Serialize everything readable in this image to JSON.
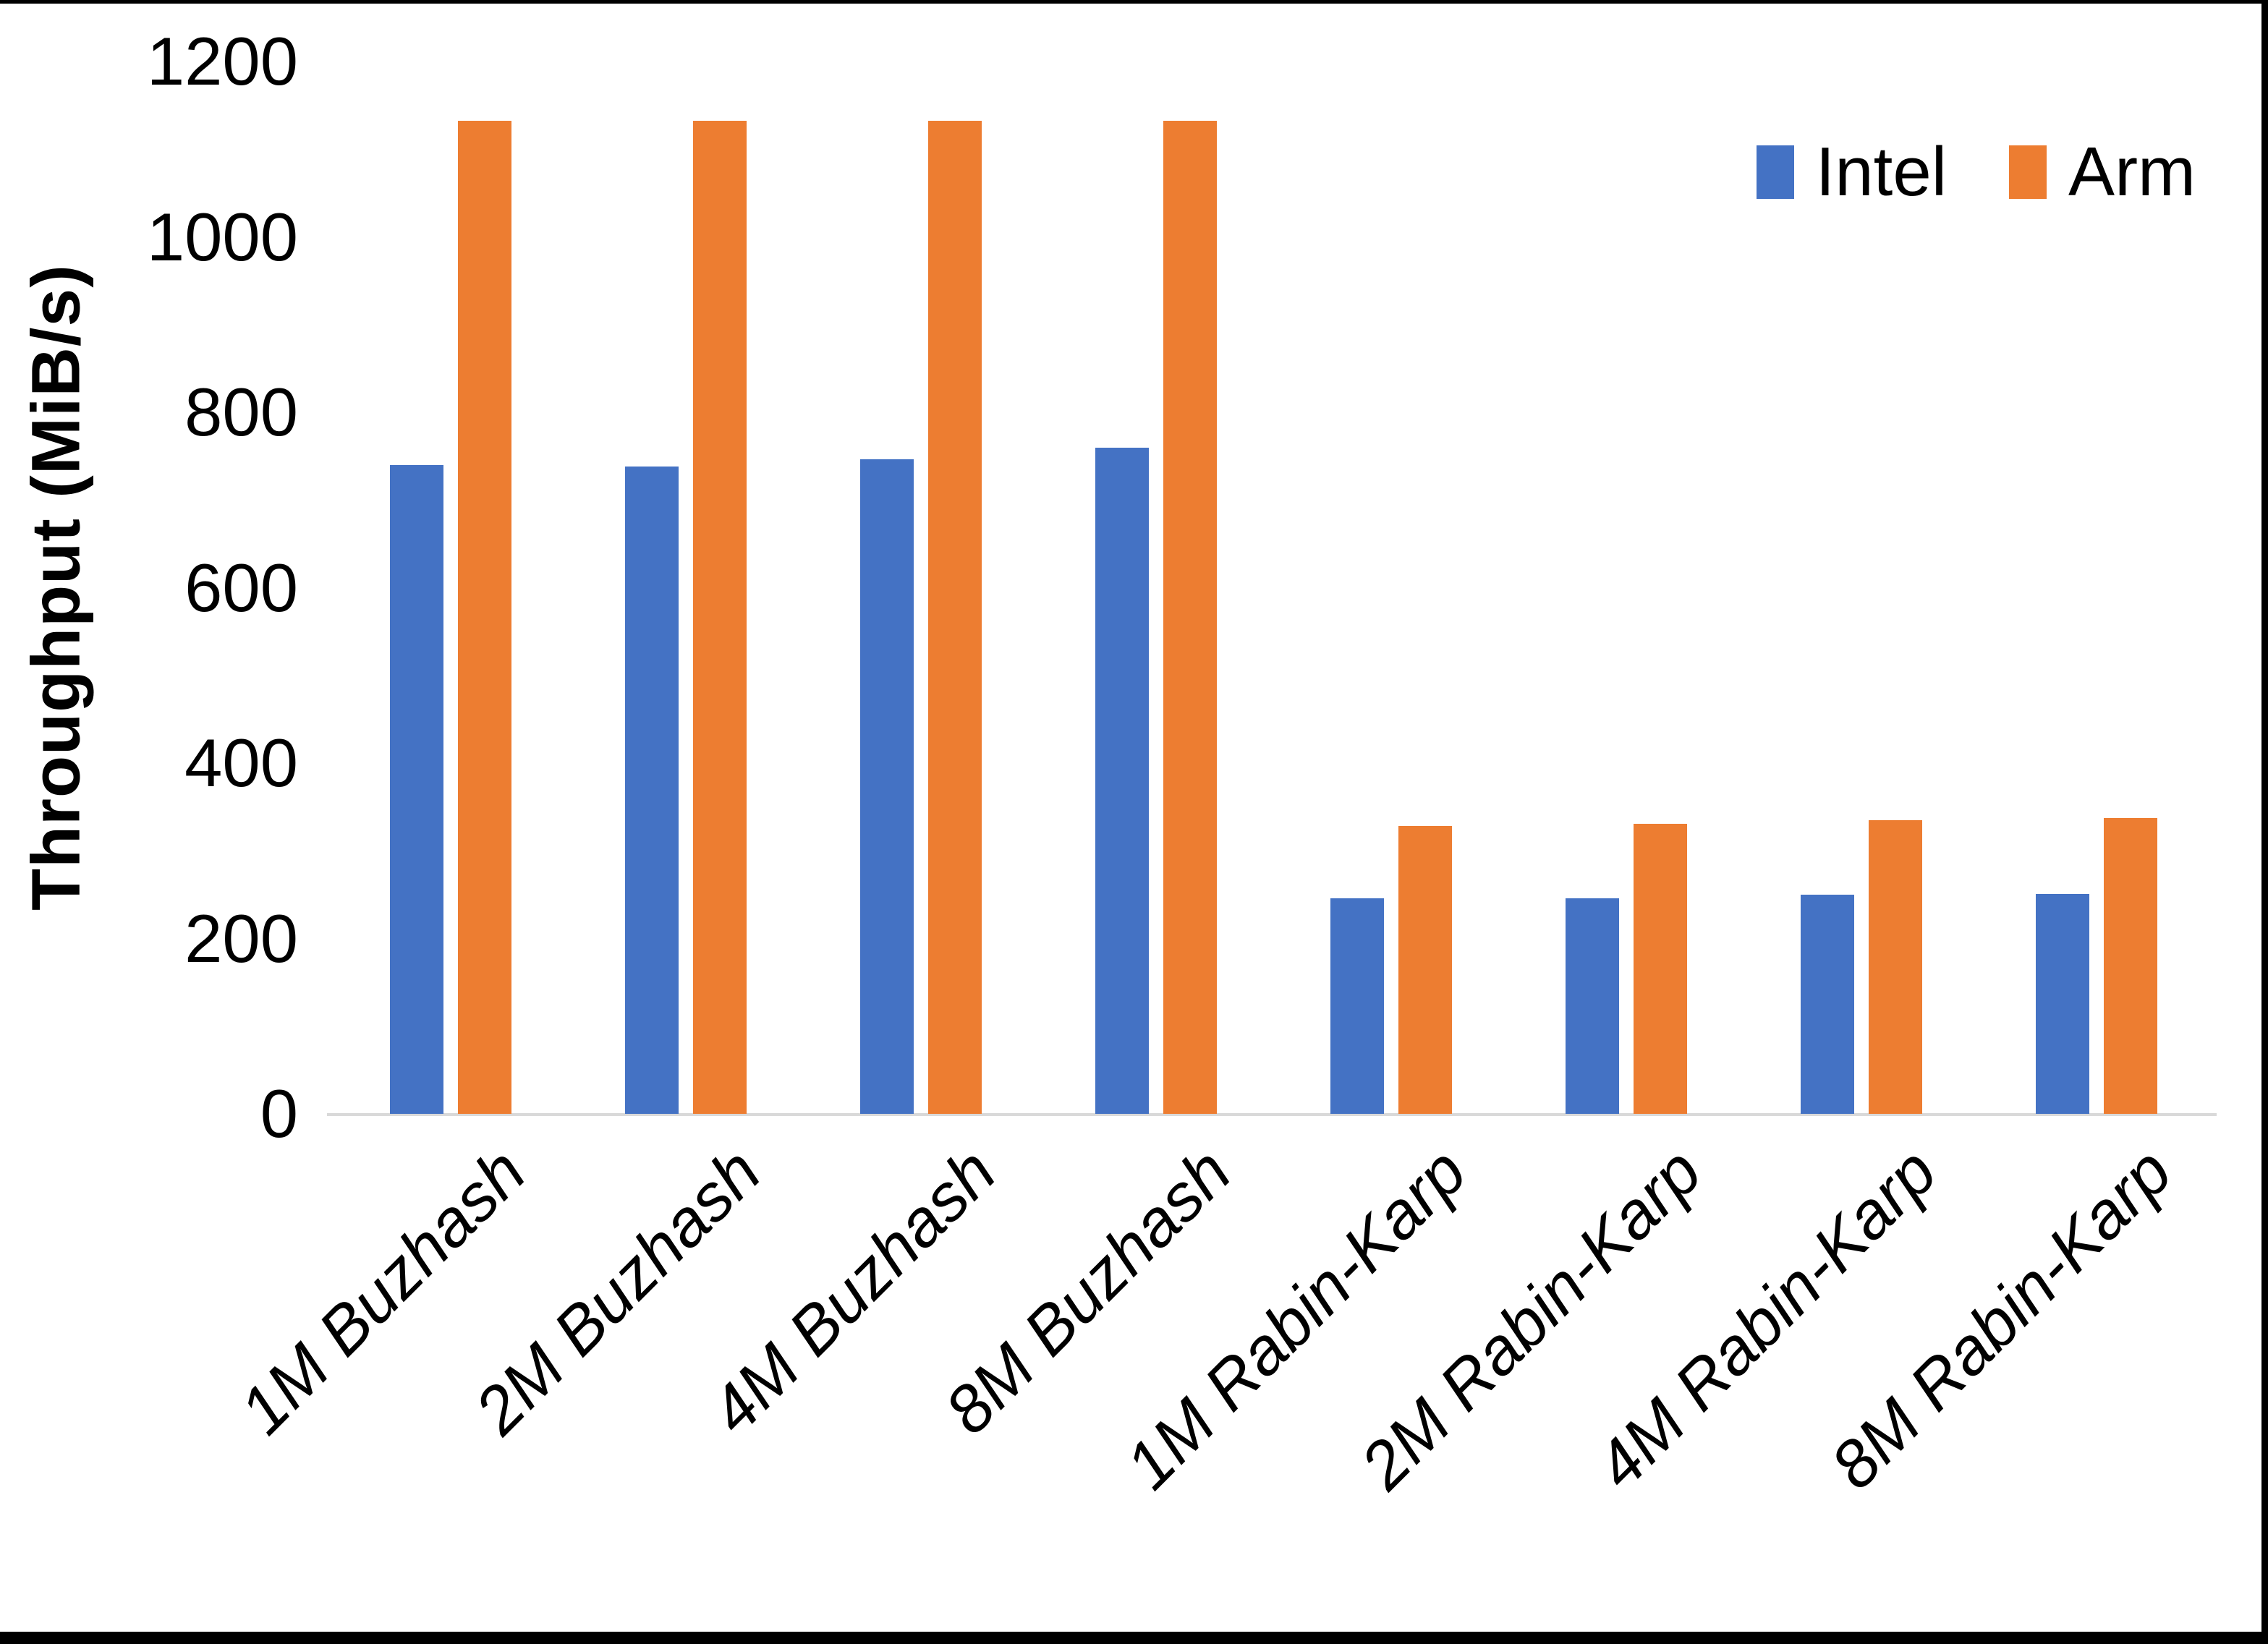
{
  "chart_data": {
    "type": "bar",
    "title": "",
    "ylabel": "Throughput (MiB/s)",
    "xlabel": "",
    "ylim": [
      0,
      1200
    ],
    "yticks": [
      0,
      200,
      400,
      600,
      800,
      1000,
      1200
    ],
    "grid": false,
    "legend_position": "top-right",
    "categories": [
      "1M Buzhash",
      "2M Buzhash",
      "4M Buzhash",
      "8M Buzhash",
      "1M Rabin-Karp",
      "2M Rabin-Karp",
      "4M Rabin-Karp",
      "8M Rabin-Karp"
    ],
    "series": [
      {
        "name": "Intel",
        "color": "#4472C4",
        "values": [
          740,
          738,
          746,
          760,
          246,
          246,
          250,
          251
        ]
      },
      {
        "name": "Arm",
        "color": "#ED7D31",
        "values": [
          1132,
          1132,
          1132,
          1132,
          328,
          331,
          335,
          337
        ]
      }
    ],
    "axis_line_color": "#D9D9D9",
    "text_color": "#000000",
    "background": "#FFFFFF",
    "frame_color": "#000000"
  }
}
